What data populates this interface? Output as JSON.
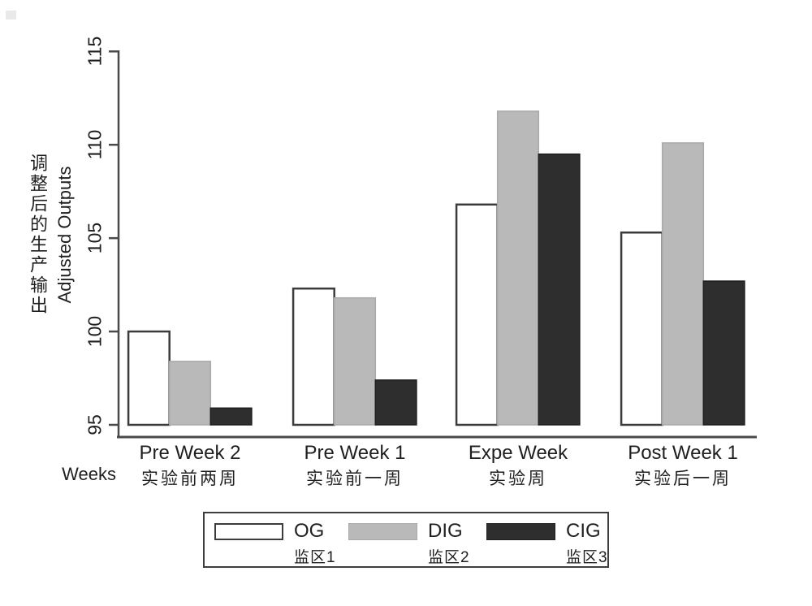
{
  "chart_data": {
    "type": "bar",
    "title": "",
    "categories": [
      "Pre Week 2",
      "Pre Week 1",
      "Expe Week",
      "Post Week 1"
    ],
    "categories_zh": [
      "实验前两周",
      "实验前一周",
      "实验周",
      "实验后一周"
    ],
    "series": [
      {
        "name": "OG",
        "name_zh": "监区1",
        "color": "#ffffff",
        "values": [
          100.0,
          102.3,
          106.8,
          105.3
        ]
      },
      {
        "name": "DIG",
        "name_zh": "监区2",
        "color": "#b9b9b9",
        "values": [
          98.4,
          101.8,
          111.8,
          110.1
        ]
      },
      {
        "name": "CIG",
        "name_zh": "监区3",
        "color": "#2e2e2e",
        "values": [
          95.9,
          97.4,
          109.5,
          102.7
        ]
      }
    ],
    "xlabel": "Weeks",
    "ylabel_zh": "调整后的生产输出",
    "ylabel_en": "Adjusted Outputs",
    "ylim": [
      95,
      115
    ],
    "yticks": [
      95,
      100,
      105,
      110,
      115
    ],
    "grid": false,
    "legend_position": "bottom"
  }
}
